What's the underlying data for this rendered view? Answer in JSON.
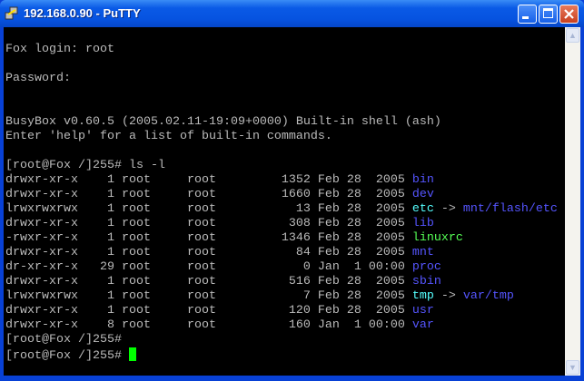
{
  "window": {
    "title": "192.168.0.90 - PuTTY"
  },
  "colors": {
    "dir": "#5555ff",
    "link": "#55ffff",
    "exe": "#55ff55",
    "text": "#bbbbbb",
    "cursor": "#00ff00"
  },
  "terminal": {
    "intro": [
      "",
      "Fox login: root",
      "",
      "Password:",
      "",
      "",
      "BusyBox v0.60.5 (2005.02.11-19:09+0000) Built-in shell (ash)",
      "Enter 'help' for a list of built-in commands.",
      "",
      "[root@Fox /]255# ls -l"
    ],
    "rows": [
      {
        "prefix": "drwxr-xr-x    1 root     root         1352 Feb 28  2005 ",
        "name": "bin",
        "type": "dir"
      },
      {
        "prefix": "drwxr-xr-x    1 root     root         1660 Feb 28  2005 ",
        "name": "dev",
        "type": "dir"
      },
      {
        "prefix": "lrwxrwxrwx    1 root     root           13 Feb 28  2005 ",
        "name": "etc",
        "type": "link",
        "target": "mnt/flash/etc"
      },
      {
        "prefix": "drwxr-xr-x    1 root     root          308 Feb 28  2005 ",
        "name": "lib",
        "type": "dir"
      },
      {
        "prefix": "-rwxr-xr-x    1 root     root         1346 Feb 28  2005 ",
        "name": "linuxrc",
        "type": "exe"
      },
      {
        "prefix": "drwxr-xr-x    1 root     root           84 Feb 28  2005 ",
        "name": "mnt",
        "type": "dir"
      },
      {
        "prefix": "dr-xr-xr-x   29 root     root            0 Jan  1 00:00 ",
        "name": "proc",
        "type": "dir"
      },
      {
        "prefix": "drwxr-xr-x    1 root     root          516 Feb 28  2005 ",
        "name": "sbin",
        "type": "dir"
      },
      {
        "prefix": "lrwxrwxrwx    1 root     root            7 Feb 28  2005 ",
        "name": "tmp",
        "type": "link",
        "target": "var/tmp"
      },
      {
        "prefix": "drwxr-xr-x    1 root     root          120 Feb 28  2005 ",
        "name": "usr",
        "type": "dir"
      },
      {
        "prefix": "drwxr-xr-x    8 root     root          160 Jan  1 00:00 ",
        "name": "var",
        "type": "dir"
      }
    ],
    "link_arrow": " -> ",
    "prompts": [
      "[root@Fox /]255# ",
      "[root@Fox /]255# "
    ]
  }
}
